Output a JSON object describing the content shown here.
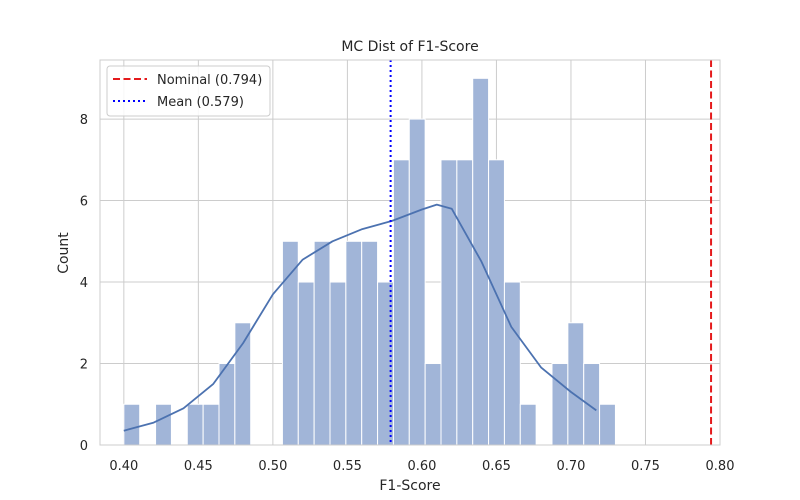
{
  "chart_data": {
    "type": "histogram",
    "title": "MC Dist of F1-Score",
    "xlabel": "F1-Score",
    "ylabel": "Count",
    "xlim": [
      0.384,
      0.8
    ],
    "ylim": [
      0,
      9.45
    ],
    "xticks": [
      "0.40",
      "0.45",
      "0.50",
      "0.55",
      "0.60",
      "0.65",
      "0.70",
      "0.75",
      "0.80"
    ],
    "xtick_values": [
      0.4,
      0.45,
      0.5,
      0.55,
      0.6,
      0.65,
      0.7,
      0.75,
      0.8
    ],
    "yticks": [
      "0",
      "2",
      "4",
      "6",
      "8"
    ],
    "ytick_values": [
      0,
      2,
      4,
      6,
      8
    ],
    "grid": true,
    "bin_start": 0.4,
    "bin_width": 0.01064,
    "counts": [
      1,
      0,
      1,
      0,
      1,
      1,
      2,
      3,
      0,
      0,
      5,
      4,
      5,
      4,
      5,
      5,
      4,
      7,
      8,
      2,
      7,
      7,
      9,
      7,
      4,
      1,
      0,
      2,
      3,
      2,
      1
    ],
    "bar_color": "#a1b5d8",
    "kde": {
      "x": [
        0.4,
        0.42,
        0.44,
        0.46,
        0.48,
        0.5,
        0.52,
        0.54,
        0.56,
        0.58,
        0.6,
        0.61,
        0.62,
        0.64,
        0.66,
        0.68,
        0.7,
        0.717
      ],
      "y": [
        0.35,
        0.55,
        0.9,
        1.5,
        2.5,
        3.7,
        4.55,
        5.0,
        5.3,
        5.5,
        5.78,
        5.9,
        5.8,
        4.5,
        2.9,
        1.9,
        1.3,
        0.85
      ],
      "color": "#4c72b0"
    },
    "legend_position": "upper-left",
    "series": [
      {
        "name": "Nominal (0.794)",
        "x": 0.794,
        "style": "dashed",
        "color": "#e41a1c"
      },
      {
        "name": "Mean (0.579)",
        "x": 0.579,
        "style": "dotted",
        "color": "#0000ff"
      }
    ]
  }
}
